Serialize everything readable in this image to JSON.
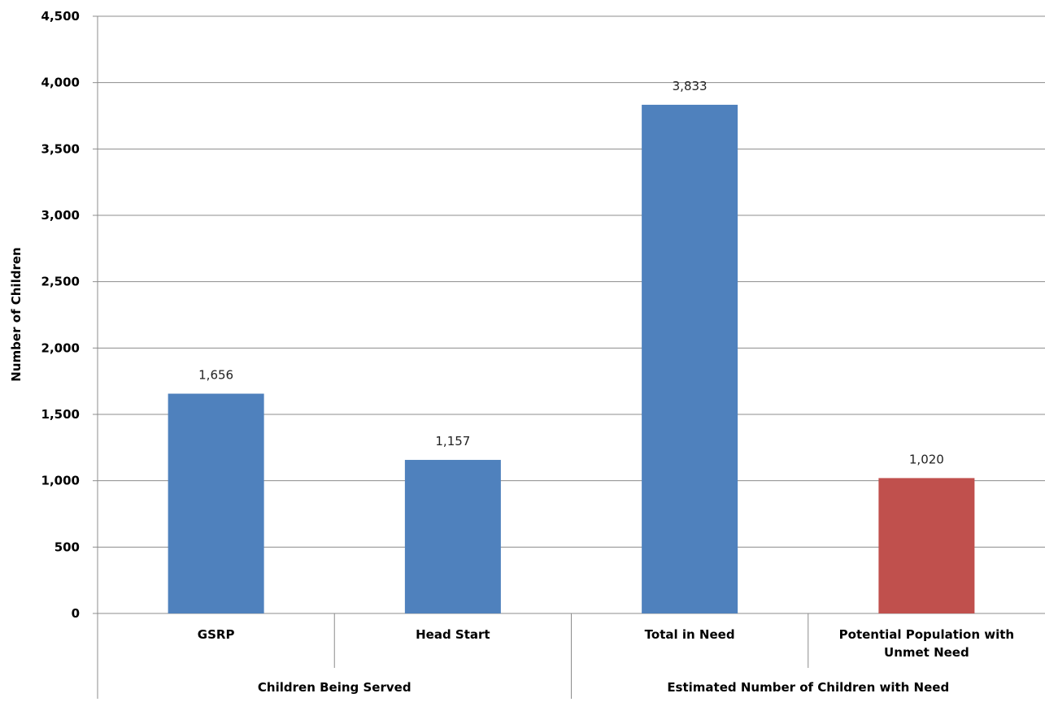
{
  "chart_data": {
    "type": "bar",
    "title": "",
    "xlabel": "",
    "ylabel": "Number of Children",
    "ylim": [
      0,
      4500
    ],
    "yticks": [
      0,
      500,
      1000,
      1500,
      2000,
      2500,
      3000,
      3500,
      4000,
      4500
    ],
    "ytick_labels": [
      "0",
      "500",
      "1,000",
      "1,500",
      "2,000",
      "2,500",
      "3,000",
      "3,500",
      "4,000",
      "4,500"
    ],
    "grid": true,
    "legend": "none",
    "categories": [
      "GSRP",
      "Head Start",
      "Total in Need",
      "Potential Population with Unmet Need"
    ],
    "category_label_lines": [
      [
        "GSRP"
      ],
      [
        "Head Start"
      ],
      [
        "Total in Need"
      ],
      [
        "Potential Population with",
        "Unmet Need"
      ]
    ],
    "values": [
      1656,
      1157,
      3833,
      1020
    ],
    "data_labels": [
      "1,656",
      "1,157",
      "3,833",
      "1,020"
    ],
    "bar_colors": [
      "#4f81bd",
      "#4f81bd",
      "#4f81bd",
      "#c0504d"
    ],
    "groups": [
      {
        "label": "Children Being Served",
        "categories": [
          "GSRP",
          "Head Start"
        ]
      },
      {
        "label": "Estimated Number of Children with Need",
        "categories": [
          "Total in Need",
          "Potential Population with Unmet Need"
        ]
      }
    ]
  }
}
